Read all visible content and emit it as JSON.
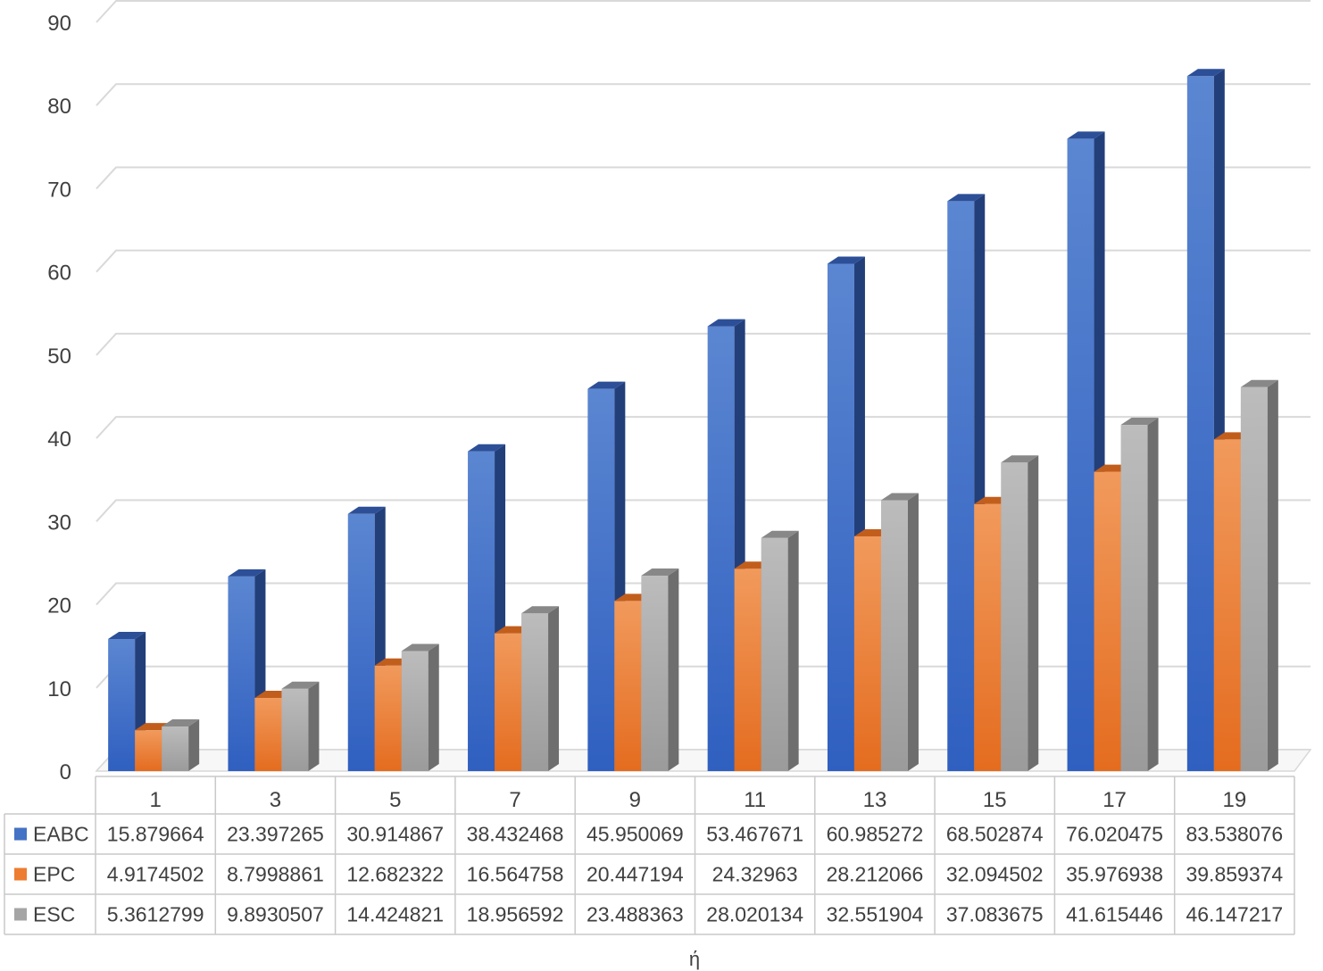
{
  "chart_data": {
    "type": "bar",
    "style": "3d-clustered-column-with-data-table",
    "xlabel": "ή",
    "ylabel": "",
    "ylim": [
      0,
      90
    ],
    "yticks": [
      0,
      10,
      20,
      30,
      40,
      50,
      60,
      70,
      80,
      90
    ],
    "grid": true,
    "legend": "data-table-left",
    "categories": [
      "1",
      "3",
      "5",
      "7",
      "9",
      "11",
      "13",
      "15",
      "17",
      "19"
    ],
    "series": [
      {
        "name": "EABC",
        "color": "#4472C4",
        "values": [
          15.879664,
          23.397265,
          30.914867,
          38.432468,
          45.950069,
          53.467671,
          60.985272,
          68.502874,
          76.020475,
          83.538076
        ],
        "labels": [
          "15.879664",
          "23.397265",
          "30.914867",
          "38.432468",
          "45.950069",
          "53.467671",
          "60.985272",
          "68.502874",
          "76.020475",
          "83.538076"
        ]
      },
      {
        "name": "EPC",
        "color": "#ED7D31",
        "values": [
          4.9174502,
          8.7998861,
          12.682322,
          16.564758,
          20.447194,
          24.32963,
          28.212066,
          32.094502,
          35.976938,
          39.859374
        ],
        "labels": [
          "4.9174502",
          "8.7998861",
          "12.682322",
          "16.564758",
          "20.447194",
          "24.32963",
          "28.212066",
          "32.094502",
          "35.976938",
          "39.859374"
        ]
      },
      {
        "name": "ESC",
        "color": "#A5A5A5",
        "values": [
          5.3612799,
          9.8930507,
          14.424821,
          18.956592,
          23.488363,
          28.020134,
          32.551904,
          37.083675,
          41.615446,
          46.147217
        ],
        "labels": [
          "5.3612799",
          "9.8930507",
          "14.424821",
          "18.956592",
          "23.488363",
          "28.020134",
          "32.551904",
          "37.083675",
          "41.615446",
          "46.147217"
        ]
      }
    ]
  }
}
